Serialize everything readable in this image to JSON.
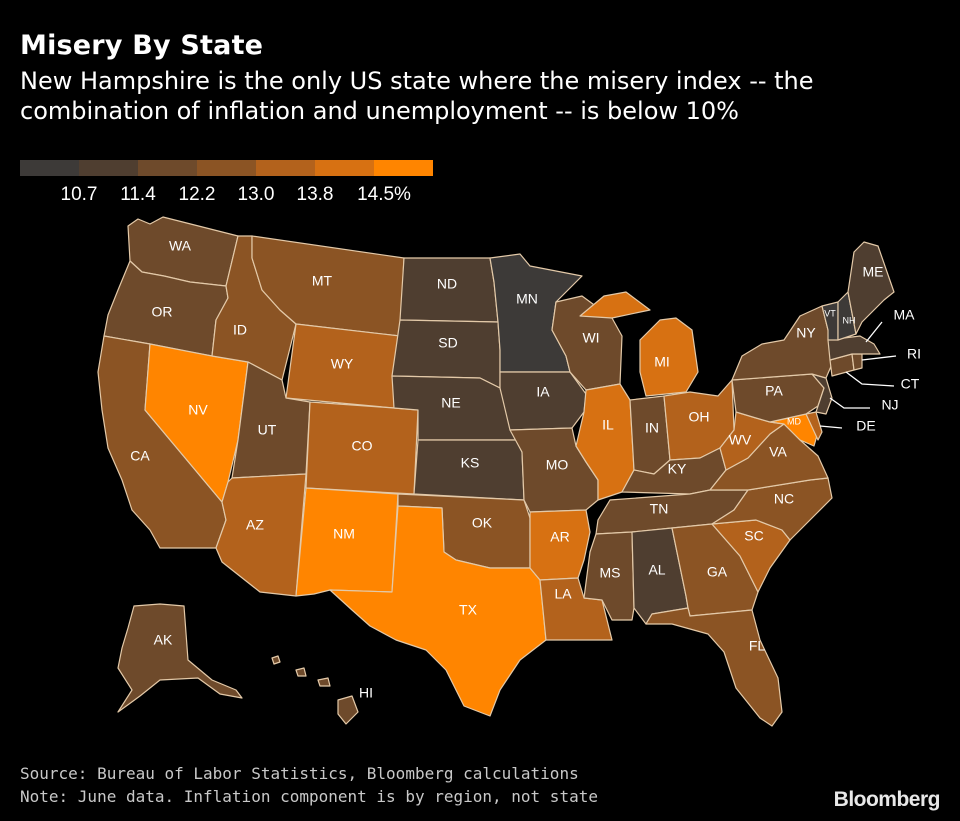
{
  "title": "Misery By State",
  "subtitle": "New Hampshire is the only US state where the misery index -- the combination of inflation and unemployment -- is below 10%",
  "legend": {
    "colors": [
      "#3d3a38",
      "#4f3e30",
      "#6e4a2b",
      "#8b5424",
      "#b3621c",
      "#d77112",
      "#ff8500"
    ],
    "ticks": [
      "10.7",
      "11.4",
      "12.2",
      "13.0",
      "13.8",
      "14.5%"
    ]
  },
  "colors": {
    "c1": "#3d3a38",
    "c2": "#4f3e30",
    "c3": "#6e4a2b",
    "c4": "#8b5424",
    "c5": "#b3621c",
    "c6": "#d77112",
    "c7": "#ff8500"
  },
  "states": [
    {
      "code": "WA",
      "bin": 3
    },
    {
      "code": "OR",
      "bin": 3
    },
    {
      "code": "CA",
      "bin": 4
    },
    {
      "code": "NV",
      "bin": 7
    },
    {
      "code": "ID",
      "bin": 4
    },
    {
      "code": "MT",
      "bin": 4
    },
    {
      "code": "WY",
      "bin": 5
    },
    {
      "code": "UT",
      "bin": 3
    },
    {
      "code": "AZ",
      "bin": 5
    },
    {
      "code": "CO",
      "bin": 5
    },
    {
      "code": "NM",
      "bin": 7
    },
    {
      "code": "ND",
      "bin": 2
    },
    {
      "code": "SD",
      "bin": 2
    },
    {
      "code": "NE",
      "bin": 2
    },
    {
      "code": "KS",
      "bin": 2
    },
    {
      "code": "OK",
      "bin": 4
    },
    {
      "code": "TX",
      "bin": 7
    },
    {
      "code": "MN",
      "bin": 1
    },
    {
      "code": "IA",
      "bin": 2
    },
    {
      "code": "MO",
      "bin": 3
    },
    {
      "code": "AR",
      "bin": 6
    },
    {
      "code": "LA",
      "bin": 5
    },
    {
      "code": "WI",
      "bin": 3
    },
    {
      "code": "IL",
      "bin": 6
    },
    {
      "code": "MI",
      "bin": 6
    },
    {
      "code": "IN",
      "bin": 3
    },
    {
      "code": "OH",
      "bin": 5
    },
    {
      "code": "KY",
      "bin": 3
    },
    {
      "code": "TN",
      "bin": 3
    },
    {
      "code": "MS",
      "bin": 3
    },
    {
      "code": "AL",
      "bin": 2
    },
    {
      "code": "GA",
      "bin": 4
    },
    {
      "code": "FL",
      "bin": 4
    },
    {
      "code": "SC",
      "bin": 5
    },
    {
      "code": "NC",
      "bin": 4
    },
    {
      "code": "VA",
      "bin": 4
    },
    {
      "code": "WV",
      "bin": 5
    },
    {
      "code": "PA",
      "bin": 3
    },
    {
      "code": "NY",
      "bin": 3
    },
    {
      "code": "ME",
      "bin": 2
    },
    {
      "code": "VT",
      "bin": 1
    },
    {
      "code": "NH",
      "bin": 1
    },
    {
      "code": "MA",
      "bin": 2
    },
    {
      "code": "RI",
      "bin": 3
    },
    {
      "code": "CT",
      "bin": 3
    },
    {
      "code": "NJ",
      "bin": 2
    },
    {
      "code": "DE",
      "bin": 5
    },
    {
      "code": "MD",
      "bin": 7
    },
    {
      "code": "AK",
      "bin": 3
    },
    {
      "code": "HI",
      "bin": 3
    }
  ],
  "source": "Source: Bureau of Labor Statistics, Bloomberg calculations",
  "note": "Note: June data. Inflation component is by region, not state",
  "brand": "Bloomberg"
}
